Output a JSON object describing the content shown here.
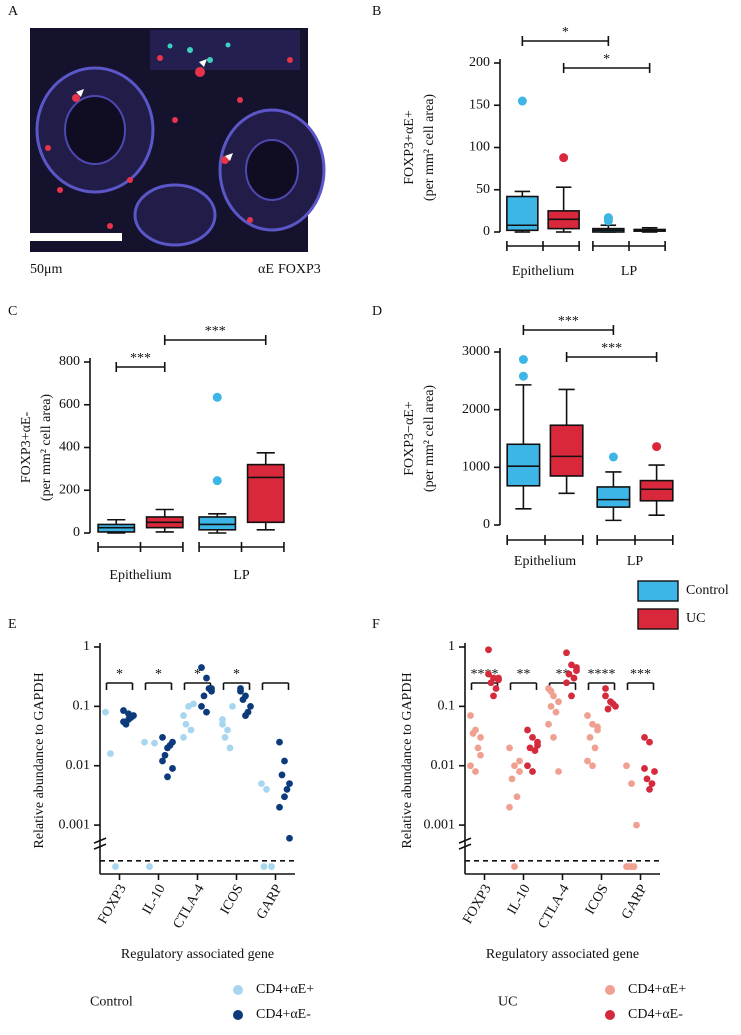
{
  "image_panel": {
    "panel": "A",
    "scale_bar_label": "50μm",
    "channels": [
      {
        "name": "αE",
        "color": "#e8334a"
      },
      {
        "name": "FOXP3",
        "color": "#23a870"
      }
    ]
  },
  "legend": {
    "series": [
      {
        "name": "Control",
        "color": "#3db5e6"
      },
      {
        "name": "UC",
        "color": "#d9283c"
      }
    ]
  },
  "chart_data": [
    {
      "type": "box",
      "panel": "B",
      "ylabel": [
        "FOXP3+αE+",
        "(per mm² cell area)"
      ],
      "categories": [
        "Epithelium",
        "LP"
      ],
      "series": [
        {
          "color": "#3db5e6",
          "boxes": [
            {
              "min": 0,
              "q1": 2,
              "median": 8,
              "q3": 42,
              "max": 48,
              "outliers": [
                155
              ]
            },
            {
              "min": 0,
              "q1": 0,
              "median": 2,
              "q3": 4,
              "max": 8,
              "outliers": [
                17,
                13,
                16
              ]
            }
          ]
        },
        {
          "color": "#d9283c",
          "boxes": [
            {
              "min": 0,
              "q1": 4,
              "median": 15,
              "q3": 25,
              "max": 53,
              "outliers": [
                88
              ]
            },
            {
              "min": 0,
              "q1": 1,
              "median": 2,
              "q3": 3,
              "max": 5,
              "outliers": []
            }
          ]
        }
      ],
      "ylim": [
        0,
        200
      ],
      "yticks": [
        0,
        50,
        100,
        150,
        200
      ],
      "significance": [
        {
          "label": "*",
          "from": [
            0,
            0
          ],
          "to": [
            1,
            0
          ]
        },
        {
          "label": "*",
          "from": [
            0,
            1
          ],
          "to": [
            1,
            1
          ]
        }
      ]
    },
    {
      "type": "box",
      "panel": "C",
      "ylabel": [
        "FOXP3+αE-",
        "(per mm² cell area)"
      ],
      "categories": [
        "Epithelium",
        "LP"
      ],
      "series": [
        {
          "color": "#3db5e6",
          "boxes": [
            {
              "min": 0,
              "q1": 5,
              "median": 25,
              "q3": 40,
              "max": 62,
              "outliers": []
            },
            {
              "min": 0,
              "q1": 15,
              "median": 40,
              "q3": 75,
              "max": 90,
              "outliers": [
                245,
                635
              ]
            }
          ]
        },
        {
          "color": "#d9283c",
          "boxes": [
            {
              "min": 5,
              "q1": 25,
              "median": 50,
              "q3": 75,
              "max": 110,
              "outliers": []
            },
            {
              "min": 15,
              "q1": 50,
              "median": 260,
              "q3": 320,
              "max": 375,
              "outliers": []
            }
          ]
        }
      ],
      "ylim": [
        0,
        800
      ],
      "yticks": [
        0,
        200,
        400,
        600,
        800
      ],
      "significance": [
        {
          "label": "***",
          "from": [
            0,
            0
          ],
          "to": [
            0,
            1
          ]
        },
        {
          "label": "***",
          "from": [
            0,
            1
          ],
          "to": [
            1,
            1
          ]
        }
      ]
    },
    {
      "type": "box",
      "panel": "D",
      "ylabel": [
        "FOXP3−αE+",
        "(per mm² cell area)"
      ],
      "categories": [
        "Epithelium",
        "LP"
      ],
      "series": [
        {
          "color": "#3db5e6",
          "boxes": [
            {
              "min": 280,
              "q1": 680,
              "median": 1020,
              "q3": 1400,
              "max": 2430,
              "outliers": [
                2870,
                2580
              ]
            },
            {
              "min": 80,
              "q1": 310,
              "median": 440,
              "q3": 660,
              "max": 920,
              "outliers": [
                1180
              ]
            }
          ]
        },
        {
          "color": "#d9283c",
          "boxes": [
            {
              "min": 550,
              "q1": 850,
              "median": 1190,
              "q3": 1730,
              "max": 2350,
              "outliers": []
            },
            {
              "min": 170,
              "q1": 420,
              "median": 620,
              "q3": 770,
              "max": 1040,
              "outliers": [
                1360
              ]
            }
          ]
        }
      ],
      "ylim": [
        0,
        3000
      ],
      "yticks": [
        0,
        1000,
        2000,
        3000
      ],
      "significance": [
        {
          "label": "***",
          "from": [
            0,
            0
          ],
          "to": [
            1,
            0
          ]
        },
        {
          "label": "***",
          "from": [
            0,
            1
          ],
          "to": [
            1,
            1
          ]
        }
      ]
    },
    {
      "type": "strip",
      "panel": "E",
      "ylabel": "Relative abundance to GAPDH",
      "xlabel": "Regulatory associated gene",
      "categories": [
        "FOXP3",
        "IL-10",
        "CTLA-4",
        "ICOS",
        "GARP"
      ],
      "log_scale": true,
      "ylim": [
        0.00015,
        1
      ],
      "yticks": [
        0.001,
        0.01,
        0.1,
        1
      ],
      "threshold": 0.00025,
      "legend_title": "Control",
      "series": [
        {
          "name": "CD4+αE+",
          "color": "#a8d5f0",
          "values": [
            [
              0.08,
              0.016,
              0.0002
            ],
            [
              0.025,
              0.0002,
              0.024
            ],
            [
              0.07,
              0.1,
              0.11,
              0.05,
              0.04,
              0.03
            ],
            [
              0.06,
              0.04,
              0.1,
              0.03,
              0.02,
              0.05
            ],
            [
              0.005,
              0.004,
              0.0002,
              0.0002
            ]
          ]
        },
        {
          "name": "CD4+αE-",
          "color": "#0c3a7a",
          "values": [
            [
              0.085,
              0.06,
              0.07,
              0.05,
              0.065,
              0.055,
              0.075
            ],
            [
              0.03,
              0.02,
              0.025,
              0.015,
              0.022,
              0.012,
              0.0065,
              0.009
            ],
            [
              0.45,
              0.3,
              0.2,
              0.15,
              0.2,
              0.1,
              0.08,
              0.18
            ],
            [
              0.2,
              0.15,
              0.1,
              0.13,
              0.08,
              0.18,
              0.07
            ],
            [
              0.025,
              0.012,
              0.005,
              0.007,
              0.004,
              0.002,
              0.003,
              0.0006
            ]
          ]
        }
      ],
      "significance": [
        "*",
        "*",
        "*",
        "*"
      ]
    },
    {
      "type": "strip",
      "panel": "F",
      "ylabel": "Relative abundance to GAPDH",
      "xlabel": "Regulatory associated gene",
      "categories": [
        "FOXP3",
        "IL-10",
        "CTLA-4",
        "ICOS",
        "GARP"
      ],
      "log_scale": true,
      "ylim": [
        0.00015,
        1
      ],
      "yticks": [
        0.001,
        0.01,
        0.1,
        1
      ],
      "threshold": 0.00025,
      "legend_title": "UC",
      "series": [
        {
          "name": "CD4+αE+",
          "color": "#f0a090",
          "values": [
            [
              0.07,
              0.04,
              0.03,
              0.035,
              0.02,
              0.01,
              0.008,
              0.015
            ],
            [
              0.02,
              0.01,
              0.008,
              0.006,
              0.003,
              0.002,
              0.0002,
              0.012
            ],
            [
              0.2,
              0.15,
              0.12,
              0.1,
              0.08,
              0.05,
              0.03,
              0.008,
              0.18
            ],
            [
              0.07,
              0.05,
              0.04,
              0.03,
              0.02,
              0.012,
              0.01,
              0.045
            ],
            [
              0.01,
              0.005,
              0.001,
              0.0002,
              0.0002,
              0.0002,
              0.0002
            ]
          ]
        },
        {
          "name": "CD4+αE-",
          "color": "#d42a3c",
          "values": [
            [
              0.9,
              0.3,
              0.28,
              0.25,
              0.2,
              0.35,
              0.15,
              0.3
            ],
            [
              0.04,
              0.03,
              0.025,
              0.02,
              0.018,
              0.01,
              0.008,
              0.022
            ],
            [
              0.8,
              0.5,
              0.4,
              0.35,
              0.3,
              0.25,
              0.15,
              0.45
            ],
            [
              0.15,
              0.12,
              0.1,
              0.09,
              0.11,
              0.2
            ],
            [
              0.03,
              0.025,
              0.008,
              0.006,
              0.005,
              0.009,
              0.004
            ]
          ]
        }
      ],
      "significance": [
        "****",
        "**",
        "**",
        "****",
        "***"
      ]
    }
  ]
}
